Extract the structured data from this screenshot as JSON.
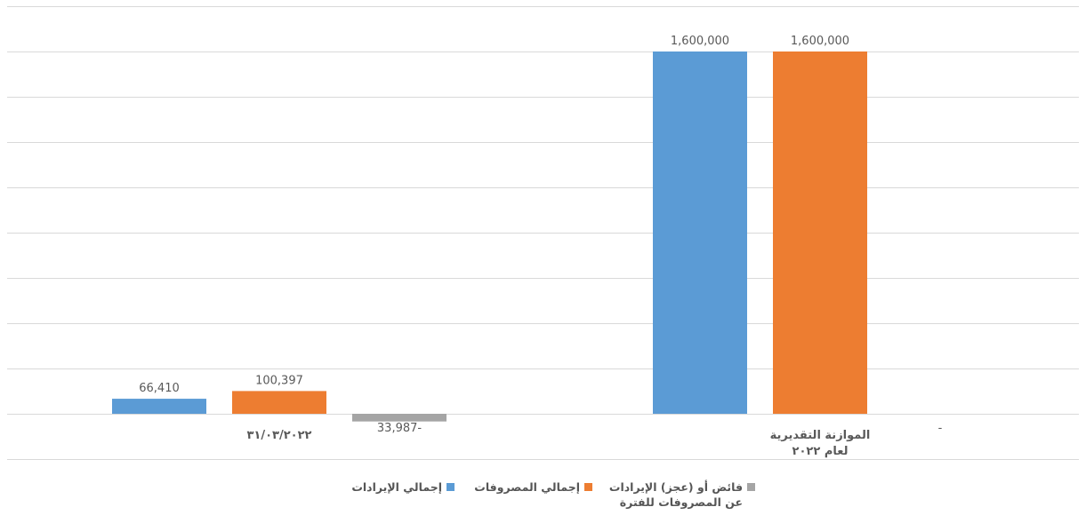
{
  "colors": {
    "revenue": "#5b9bd5",
    "expenses": "#ed7d31",
    "surplus": "#a5a5a5",
    "grid": "#d9d9d9",
    "text": "#595959"
  },
  "chart_data": {
    "type": "bar",
    "title": "",
    "xlabel": "",
    "ylabel": "",
    "ylim": [
      -100000,
      1800000
    ],
    "grid": true,
    "legend_position": "bottom",
    "categories": [
      "31/03/2022",
      "الموازنة التقديرية لعام ٢٠٢٢"
    ],
    "category_labels": [
      [
        "٣١/٠٣/٢٠٢٢"
      ],
      [
        "الموازنة التقديرية",
        "لعام ٢٠٢٢"
      ]
    ],
    "series": [
      {
        "name": "إجمالي الإيرادات",
        "color": "#5b9bd5",
        "values": [
          66410,
          1600000
        ],
        "labels": [
          "66,410",
          "1,600,000"
        ]
      },
      {
        "name": "إجمالي المصروفات",
        "color": "#ed7d31",
        "values": [
          100397,
          1600000
        ],
        "labels": [
          "100,397",
          "1,600,000"
        ]
      },
      {
        "name": "فائض أو (عجز) الإيرادات عن المصروفات للفترة",
        "name_lines": [
          "فائض أو (عجز) الإيرادات",
          "عن المصروفات للفترة"
        ],
        "color": "#a5a5a5",
        "values": [
          -33987,
          0
        ],
        "labels": [
          "33,987-",
          "-"
        ]
      }
    ]
  }
}
